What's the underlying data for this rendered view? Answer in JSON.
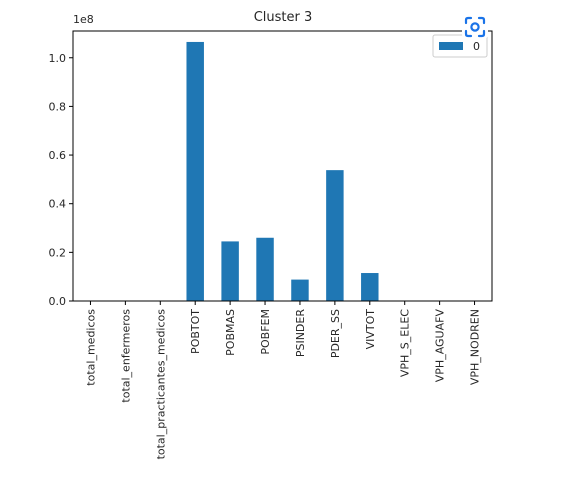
{
  "chart_data": {
    "type": "bar",
    "title": "Cluster 3",
    "offset_text": "1e8",
    "categories": [
      "total_medicos",
      "total_enfermeros",
      "total_practicantes_medicos",
      "POBTOT",
      "POBMAS",
      "POBFEM",
      "PSINDER",
      "PDER_SS",
      "VIVTOT",
      "VPH_S_ELEC",
      "VPH_AGUAFV",
      "VPH_NODREN"
    ],
    "series": [
      {
        "name": "0",
        "values": [
          0,
          0,
          0,
          106500000,
          24500000,
          26000000,
          8800000,
          53800000,
          11500000,
          0,
          0,
          0
        ],
        "color": "#1f77b4"
      }
    ],
    "ylim": [
      0,
      111000000
    ],
    "yticks": [
      0,
      20000000,
      40000000,
      60000000,
      80000000,
      100000000
    ],
    "ytick_labels": [
      "0.0",
      "0.2",
      "0.4",
      "0.6",
      "0.8",
      "1.0"
    ],
    "legend_position": "top-right",
    "grid": false
  },
  "overlay": {
    "icon": "lens-icon",
    "color": "#1a73e8"
  }
}
